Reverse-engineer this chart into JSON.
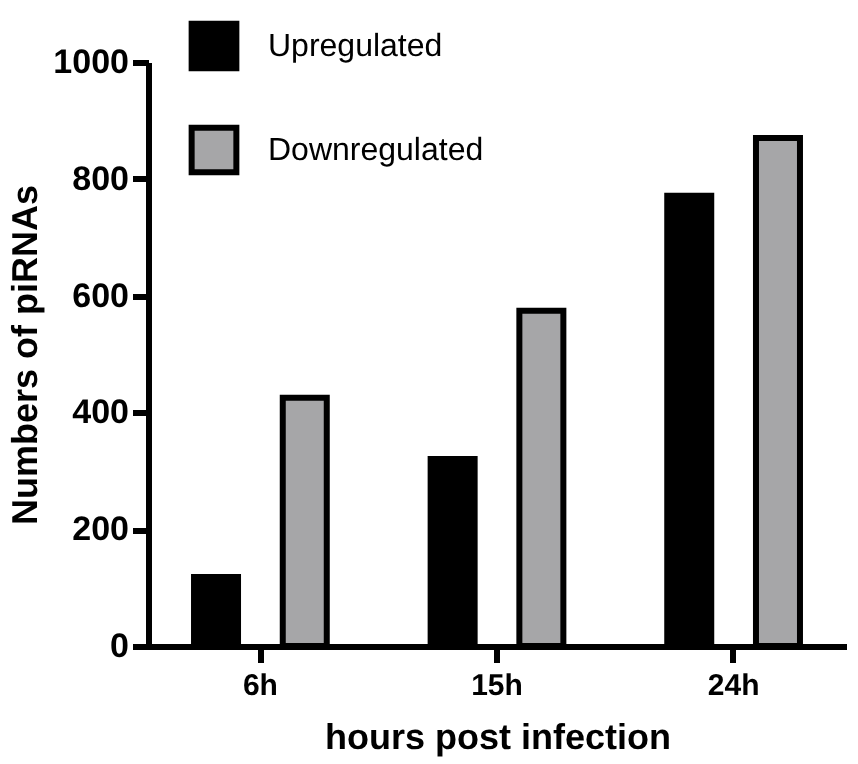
{
  "chart_data": {
    "type": "bar",
    "xlabel": "hours post infection",
    "ylabel": "Numbers of piRNAs",
    "categories": [
      "6h",
      "15h",
      "24h"
    ],
    "series": [
      {
        "name": "Upregulated",
        "color": "#000000",
        "values": [
          118,
          320,
          771
        ]
      },
      {
        "name": "Downregulated",
        "color": "#a6a6a8",
        "values": [
          425,
          574,
          870
        ]
      }
    ],
    "ylim": [
      0,
      1000
    ],
    "yticks": [
      0,
      200,
      400,
      600,
      800,
      1000
    ],
    "grid": false,
    "legend": "top"
  }
}
